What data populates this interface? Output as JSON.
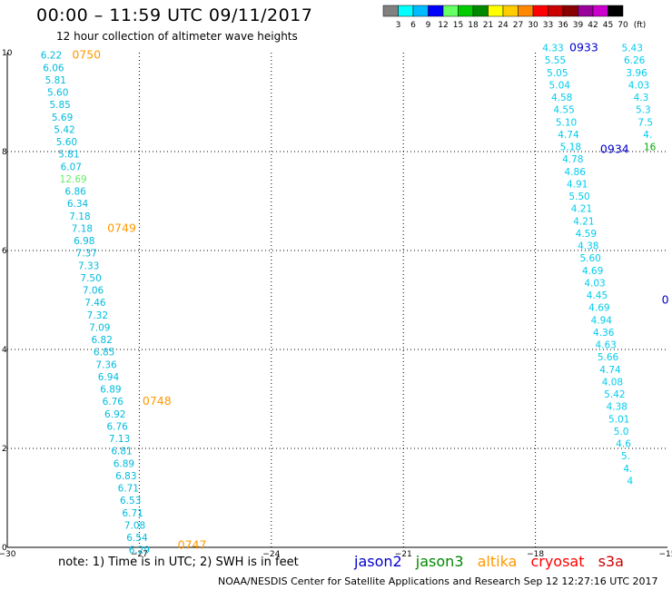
{
  "header": {
    "title": "00:00 – 11:59 UTC 09/11/2017",
    "subtitle": "12 hour collection of altimeter wave heights"
  },
  "color_legend": {
    "labels": [
      "3",
      "6",
      "9",
      "12",
      "15",
      "18",
      "21",
      "24",
      "27",
      "30",
      "33",
      "36",
      "39",
      "42",
      "45",
      "70",
      "(ft)"
    ],
    "colors": [
      "#808080",
      "#00ffff",
      "#00bbff",
      "#0000ff",
      "#66ff66",
      "#00cc00",
      "#008800",
      "#ffff00",
      "#ffcc00",
      "#ff8800",
      "#ff0000",
      "#cc0000",
      "#880000",
      "#990099",
      "#cc00cc",
      "#000000"
    ]
  },
  "footer": {
    "note": "note: 1) Time is in UTC; 2) SWH is in feet",
    "credit": "NOAA/NESDIS Center for Satellite Applications and Research   Sep 12 12:27:16 UTC 2017",
    "satellites": [
      {
        "name": "jason2",
        "color": "#0000cc"
      },
      {
        "name": "jason3",
        "color": "#008800"
      },
      {
        "name": "altika",
        "color": "#ff9900"
      },
      {
        "name": "cryosat",
        "color": "#ff0000"
      },
      {
        "name": "s3a",
        "color": "#cc0000"
      }
    ]
  },
  "chart_data": {
    "type": "scatter",
    "x_ticks": [
      "−30",
      "−27",
      "−24",
      "−21",
      "−18",
      "−15"
    ],
    "y_ticks": [
      "0",
      "2",
      "4",
      "6",
      "8",
      "10"
    ],
    "xlim": [
      -30,
      -15
    ],
    "ylim": [
      0,
      10
    ],
    "grid": true,
    "time_labels": [
      {
        "text": "0750",
        "x": -28.2,
        "y": 9.95,
        "color": "#ff9900"
      },
      {
        "text": "0749",
        "x": -27.4,
        "y": 6.45,
        "color": "#ff9900"
      },
      {
        "text": "0748",
        "x": -26.6,
        "y": 2.95,
        "color": "#ff9900"
      },
      {
        "text": "0747",
        "x": -25.8,
        "y": 0.05,
        "color": "#ff9900"
      },
      {
        "text": "0933",
        "x": -16.9,
        "y": 10.1,
        "color": "#0000cc"
      },
      {
        "text": "0934",
        "x": -16.2,
        "y": 8.05,
        "color": "#0000cc"
      },
      {
        "text": "0",
        "x": -15.05,
        "y": 5.0,
        "color": "#0000cc"
      }
    ],
    "series": [
      {
        "name": "altika",
        "color": "#00bbdd",
        "points": [
          {
            "v": "6.22",
            "x": -29.0,
            "y": 9.95
          },
          {
            "v": "6.06",
            "x": -28.95,
            "y": 9.7
          },
          {
            "v": "5.81",
            "x": -28.9,
            "y": 9.45
          },
          {
            "v": "5.60",
            "x": -28.85,
            "y": 9.2
          },
          {
            "v": "5.85",
            "x": -28.8,
            "y": 8.95
          },
          {
            "v": "5.69",
            "x": -28.75,
            "y": 8.7
          },
          {
            "v": "5.42",
            "x": -28.7,
            "y": 8.45
          },
          {
            "v": "5.60",
            "x": -28.65,
            "y": 8.2
          },
          {
            "v": "5.81",
            "x": -28.6,
            "y": 7.95
          },
          {
            "v": "6.07",
            "x": -28.55,
            "y": 7.7
          },
          {
            "v": "12.69",
            "x": -28.5,
            "y": 7.45,
            "color": "#66ee66"
          },
          {
            "v": "6.86",
            "x": -28.45,
            "y": 7.2
          },
          {
            "v": "6.34",
            "x": -28.4,
            "y": 6.95
          },
          {
            "v": "7.18",
            "x": -28.35,
            "y": 6.7
          },
          {
            "v": "7.18",
            "x": -28.3,
            "y": 6.45
          },
          {
            "v": "6.98",
            "x": -28.25,
            "y": 6.2
          },
          {
            "v": "7.37",
            "x": -28.2,
            "y": 5.95
          },
          {
            "v": "7.33",
            "x": -28.15,
            "y": 5.7
          },
          {
            "v": "7.50",
            "x": -28.1,
            "y": 5.45
          },
          {
            "v": "7.06",
            "x": -28.05,
            "y": 5.2
          },
          {
            "v": "7.46",
            "x": -28.0,
            "y": 4.95
          },
          {
            "v": "7.32",
            "x": -27.95,
            "y": 4.7
          },
          {
            "v": "7.09",
            "x": -27.9,
            "y": 4.45
          },
          {
            "v": "6.82",
            "x": -27.85,
            "y": 4.2
          },
          {
            "v": "6.85",
            "x": -27.8,
            "y": 3.95
          },
          {
            "v": "7.36",
            "x": -27.75,
            "y": 3.7
          },
          {
            "v": "6.94",
            "x": -27.7,
            "y": 3.45
          },
          {
            "v": "6.89",
            "x": -27.65,
            "y": 3.2
          },
          {
            "v": "6.76",
            "x": -27.6,
            "y": 2.95
          },
          {
            "v": "6.92",
            "x": -27.55,
            "y": 2.7
          },
          {
            "v": "6.76",
            "x": -27.5,
            "y": 2.45
          },
          {
            "v": "7.13",
            "x": -27.45,
            "y": 2.2
          },
          {
            "v": "6.81",
            "x": -27.4,
            "y": 1.95
          },
          {
            "v": "6.89",
            "x": -27.35,
            "y": 1.7
          },
          {
            "v": "6.83",
            "x": -27.3,
            "y": 1.45
          },
          {
            "v": "6.71",
            "x": -27.25,
            "y": 1.2
          },
          {
            "v": "6.53",
            "x": -27.2,
            "y": 0.95
          },
          {
            "v": "6.71",
            "x": -27.15,
            "y": 0.7
          },
          {
            "v": "7.08",
            "x": -27.1,
            "y": 0.45
          },
          {
            "v": "6.54",
            "x": -27.05,
            "y": 0.2
          },
          {
            "v": "6.29",
            "x": -27.0,
            "y": -0.05
          }
        ]
      },
      {
        "name": "jason2 track 1",
        "color": "#00ccee",
        "points": [
          {
            "v": "4.33",
            "x": -17.6,
            "y": 10.1
          },
          {
            "v": "5.55",
            "x": -17.55,
            "y": 9.85
          },
          {
            "v": "5.05",
            "x": -17.5,
            "y": 9.6
          },
          {
            "v": "5.04",
            "x": -17.45,
            "y": 9.35
          },
          {
            "v": "4.58",
            "x": -17.4,
            "y": 9.1
          },
          {
            "v": "4.55",
            "x": -17.35,
            "y": 8.85
          },
          {
            "v": "5.10",
            "x": -17.3,
            "y": 8.6
          },
          {
            "v": "4.74",
            "x": -17.25,
            "y": 8.35
          },
          {
            "v": "5.18",
            "x": -17.2,
            "y": 8.1
          },
          {
            "v": "4.78",
            "x": -17.15,
            "y": 7.85
          },
          {
            "v": "4.86",
            "x": -17.1,
            "y": 7.6
          },
          {
            "v": "4.91",
            "x": -17.05,
            "y": 7.35
          },
          {
            "v": "5.50",
            "x": -17.0,
            "y": 7.1
          },
          {
            "v": "4.21",
            "x": -16.95,
            "y": 6.85
          },
          {
            "v": "4.21",
            "x": -16.9,
            "y": 6.6
          },
          {
            "v": "4.59",
            "x": -16.85,
            "y": 6.35
          },
          {
            "v": "4.38",
            "x": -16.8,
            "y": 6.1
          },
          {
            "v": "5.60",
            "x": -16.75,
            "y": 5.85
          },
          {
            "v": "4.69",
            "x": -16.7,
            "y": 5.6
          },
          {
            "v": "4.03",
            "x": -16.65,
            "y": 5.35
          },
          {
            "v": "4.45",
            "x": -16.6,
            "y": 5.1
          },
          {
            "v": "4.69",
            "x": -16.55,
            "y": 4.85
          },
          {
            "v": "4.94",
            "x": -16.5,
            "y": 4.6
          },
          {
            "v": "4.36",
            "x": -16.45,
            "y": 4.35
          },
          {
            "v": "4.63",
            "x": -16.4,
            "y": 4.1
          },
          {
            "v": "5.66",
            "x": -16.35,
            "y": 3.85
          },
          {
            "v": "4.74",
            "x": -16.3,
            "y": 3.6
          },
          {
            "v": "4.08",
            "x": -16.25,
            "y": 3.35
          },
          {
            "v": "5.42",
            "x": -16.2,
            "y": 3.1
          },
          {
            "v": "4.38",
            "x": -16.15,
            "y": 2.85
          },
          {
            "v": "5.01",
            "x": -16.1,
            "y": 2.6
          },
          {
            "v": "5.0",
            "x": -16.05,
            "y": 2.35
          },
          {
            "v": "4.6",
            "x": -16.0,
            "y": 2.1
          },
          {
            "v": "5.",
            "x": -15.95,
            "y": 1.85
          },
          {
            "v": "4.",
            "x": -15.9,
            "y": 1.6
          },
          {
            "v": "4",
            "x": -15.85,
            "y": 1.35
          }
        ]
      },
      {
        "name": "jason2 track 2",
        "color": "#00ccee",
        "points": [
          {
            "v": "5.43",
            "x": -15.8,
            "y": 10.1
          },
          {
            "v": "6.26",
            "x": -15.75,
            "y": 9.85
          },
          {
            "v": "3.96",
            "x": -15.7,
            "y": 9.6
          },
          {
            "v": "4.03",
            "x": -15.65,
            "y": 9.35
          },
          {
            "v": "4.3",
            "x": -15.6,
            "y": 9.1
          },
          {
            "v": "5.3",
            "x": -15.55,
            "y": 8.85
          },
          {
            "v": "7.5",
            "x": -15.5,
            "y": 8.6
          },
          {
            "v": "4.",
            "x": -15.45,
            "y": 8.35
          },
          {
            "v": "16",
            "x": -15.4,
            "y": 8.1,
            "color": "#00aa00"
          }
        ]
      }
    ]
  }
}
